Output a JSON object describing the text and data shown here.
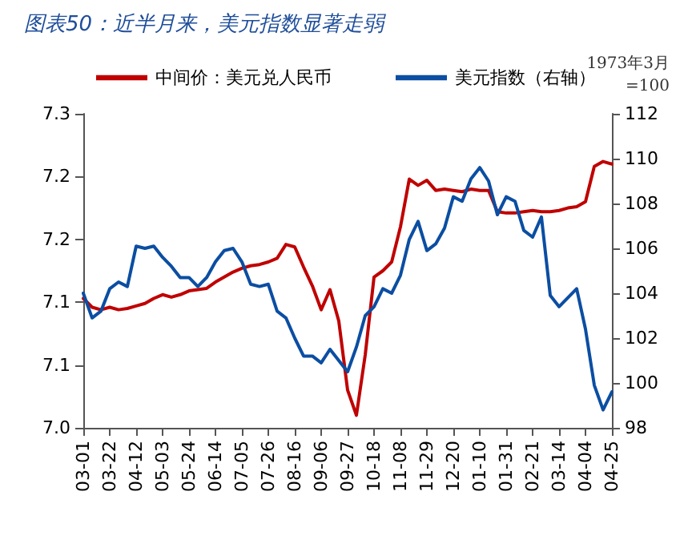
{
  "chart_data": {
    "type": "line",
    "title": "图表50：近半月来，美元指数显著走弱",
    "y2label": "1973年3月\n=100",
    "legend": "top",
    "marker": "none",
    "line_style": "solid",
    "grid": false,
    "categories": [
      "03-01",
      null,
      null,
      "03-22",
      null,
      null,
      "04-12",
      null,
      null,
      "05-03",
      null,
      null,
      "05-24",
      null,
      null,
      "06-14",
      null,
      null,
      "07-05",
      null,
      null,
      "07-26",
      null,
      null,
      "08-16",
      null,
      null,
      "09-06",
      null,
      null,
      "09-27",
      null,
      null,
      "10-18",
      null,
      null,
      "11-08",
      null,
      null,
      "11-29",
      null,
      null,
      "12-20",
      null,
      null,
      "01-10",
      null,
      null,
      "01-31",
      null,
      null,
      "02-21",
      null,
      null,
      "03-14",
      null,
      null,
      "04-04",
      null,
      null,
      "04-25"
    ],
    "series": [
      {
        "name": "中间价：美元兑人民币",
        "color": "#c00000",
        "values": [
          7.103,
          7.096,
          7.094,
          7.096,
          7.094,
          7.095,
          7.097,
          7.099,
          7.103,
          7.106,
          7.104,
          7.106,
          7.109,
          7.11,
          7.111,
          7.116,
          7.12,
          7.124,
          7.127,
          7.129,
          7.13,
          7.132,
          7.135,
          7.146,
          7.144,
          7.128,
          7.113,
          7.094,
          7.11,
          7.085,
          7.03,
          7.01,
          7.058,
          7.12,
          7.125,
          7.132,
          7.16,
          7.198,
          7.193,
          7.197,
          7.189,
          7.19,
          7.189,
          7.188,
          7.19,
          7.189,
          7.189,
          7.172,
          7.171,
          7.171,
          7.172,
          7.173,
          7.172,
          7.172,
          7.173,
          7.175,
          7.176,
          7.18,
          7.208,
          7.212,
          7.21
        ]
      },
      {
        "name": "美元指数（右轴）",
        "color": "#0b4ea2",
        "axis": "y2",
        "values": [
          104.0,
          102.9,
          103.2,
          104.2,
          104.5,
          104.3,
          106.1,
          106.0,
          106.1,
          105.6,
          105.2,
          104.7,
          104.7,
          104.3,
          104.7,
          105.4,
          105.9,
          106.0,
          105.4,
          104.4,
          104.3,
          104.4,
          103.2,
          102.9,
          102.0,
          101.2,
          101.2,
          100.9,
          101.5,
          101.0,
          100.5,
          101.6,
          103.0,
          103.4,
          104.2,
          104.0,
          104.8,
          106.4,
          107.2,
          105.9,
          106.2,
          106.9,
          108.3,
          108.1,
          109.1,
          109.6,
          109.0,
          107.5,
          108.3,
          108.1,
          106.8,
          106.5,
          107.4,
          103.9,
          103.4,
          103.8,
          104.2,
          102.4,
          99.9,
          98.8,
          99.6
        ]
      }
    ],
    "ylim": [
      7.0,
      7.25
    ],
    "yticks": [
      {
        "value": 7.0,
        "label": "7.0"
      },
      {
        "value": 7.05,
        "label": "7.1"
      },
      {
        "value": 7.1,
        "label": "7.1"
      },
      {
        "value": 7.15,
        "label": "7.2"
      },
      {
        "value": 7.2,
        "label": "7.2"
      },
      {
        "value": 7.25,
        "label": "7.3"
      }
    ],
    "y2lim": [
      98,
      112
    ],
    "y2ticks": [
      98,
      100,
      102,
      104,
      106,
      108,
      110,
      112
    ]
  }
}
